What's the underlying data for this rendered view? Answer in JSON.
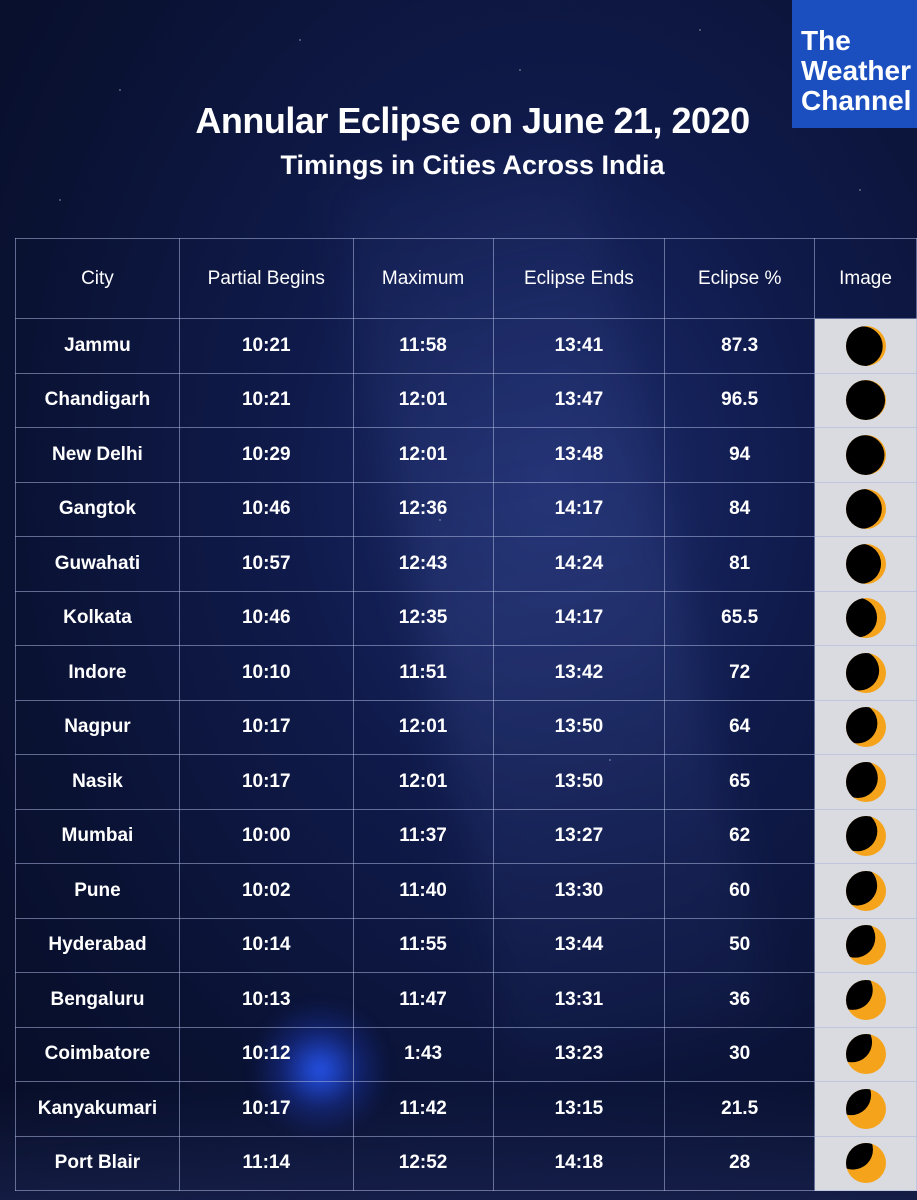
{
  "logo": {
    "line1": "The",
    "line2": "Weather",
    "line3": "Channel"
  },
  "title": "Annular Eclipse on June 21, 2020",
  "subtitle": "Timings in Cities Across India",
  "table": {
    "headers": [
      "City",
      "Partial Begins",
      "Maximum",
      "Eclipse Ends",
      "Eclipse %",
      "Image"
    ],
    "rows": [
      {
        "city": "Jammu",
        "begin": "10:21",
        "max": "11:58",
        "end": "13:41",
        "pct": "87.3"
      },
      {
        "city": "Chandigarh",
        "begin": "10:21",
        "max": "12:01",
        "end": "13:47",
        "pct": "96.5"
      },
      {
        "city": "New Delhi",
        "begin": "10:29",
        "max": "12:01",
        "end": "13:48",
        "pct": "94"
      },
      {
        "city": "Gangtok",
        "begin": "10:46",
        "max": "12:36",
        "end": "14:17",
        "pct": "84"
      },
      {
        "city": "Guwahati",
        "begin": "10:57",
        "max": "12:43",
        "end": "14:24",
        "pct": "81"
      },
      {
        "city": "Kolkata",
        "begin": "10:46",
        "max": "12:35",
        "end": "14:17",
        "pct": "65.5"
      },
      {
        "city": "Indore",
        "begin": "10:10",
        "max": "11:51",
        "end": "13:42",
        "pct": "72"
      },
      {
        "city": "Nagpur",
        "begin": "10:17",
        "max": "12:01",
        "end": "13:50",
        "pct": "64"
      },
      {
        "city": "Nasik",
        "begin": "10:17",
        "max": "12:01",
        "end": "13:50",
        "pct": "65"
      },
      {
        "city": "Mumbai",
        "begin": "10:00",
        "max": "11:37",
        "end": "13:27",
        "pct": "62"
      },
      {
        "city": "Pune",
        "begin": "10:02",
        "max": "11:40",
        "end": "13:30",
        "pct": "60"
      },
      {
        "city": "Hyderabad",
        "begin": "10:14",
        "max": "11:55",
        "end": "13:44",
        "pct": "50"
      },
      {
        "city": "Bengaluru",
        "begin": "10:13",
        "max": "11:47",
        "end": "13:31",
        "pct": "36"
      },
      {
        "city": "Coimbatore",
        "begin": "10:12",
        "max": "1:43",
        "end": "13:23",
        "pct": "30"
      },
      {
        "city": "Kanyakumari",
        "begin": "10:17",
        "max": "11:42",
        "end": "13:15",
        "pct": "21.5"
      },
      {
        "city": "Port Blair",
        "begin": "11:14",
        "max": "12:52",
        "end": "14:18",
        "pct": "28"
      }
    ]
  },
  "colors": {
    "sun": "#f5a31a",
    "moon": "#000000",
    "image_cell": "#dadbe0",
    "logo_bg": "#1b4fbf"
  }
}
